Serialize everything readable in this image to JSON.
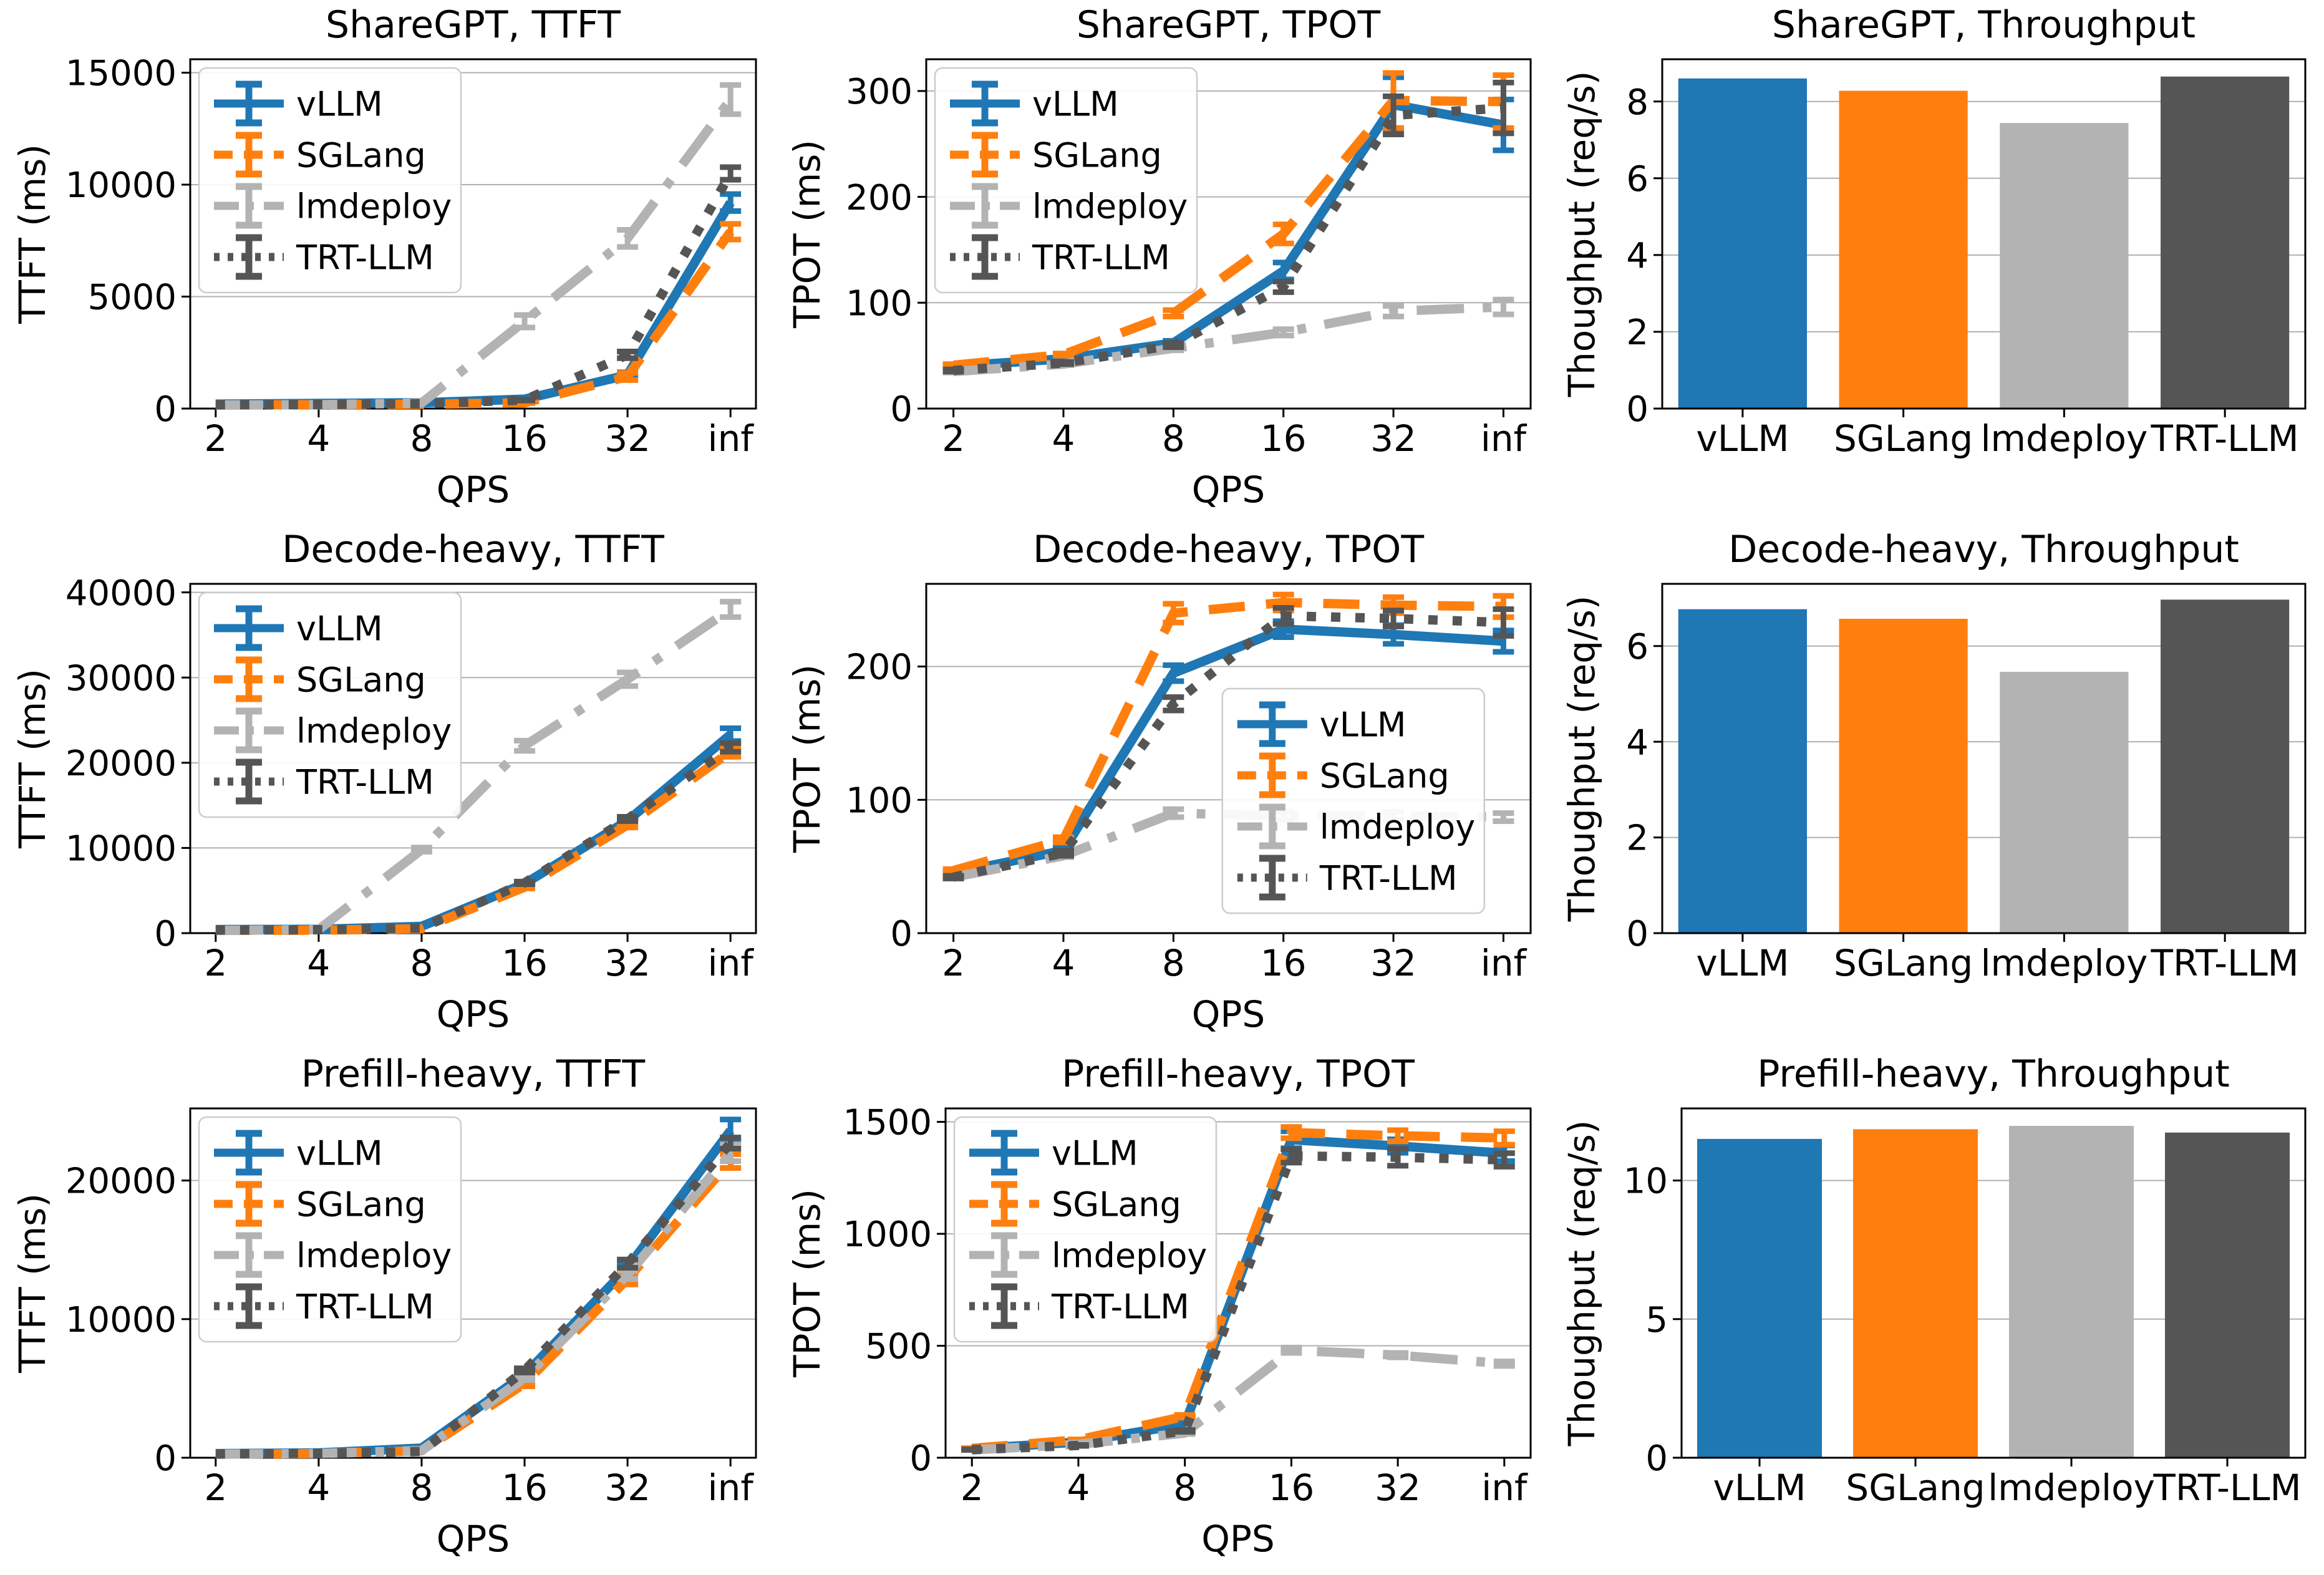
{
  "style": {
    "background": "#ffffff",
    "grid_color": "#b0b0b0",
    "spine_color": "#000000",
    "legend_border_color": "#cccccc",
    "series": {
      "vLLM": {
        "color": "#1f77b4",
        "linestyle": "solid"
      },
      "SGLang": {
        "color": "#ff7f0e",
        "linestyle": "dashed"
      },
      "lmdeploy": {
        "color": "#b3b3b3",
        "linestyle": "dashdot"
      },
      "TRT-LLM": {
        "color": "#555555",
        "linestyle": "dotted"
      }
    }
  },
  "chart_data": [
    {
      "id": "sharegpt_ttft",
      "type": "line",
      "title": "ShareGPT, TTFT",
      "xlabel": "QPS",
      "ylabel": "TTFT (ms)",
      "x": [
        "2",
        "4",
        "8",
        "16",
        "32",
        "inf"
      ],
      "ylim": [
        0,
        15600
      ],
      "yticks": [
        0,
        5000,
        10000,
        15000
      ],
      "grid": true,
      "legend": "upper_left",
      "series": [
        {
          "name": "vLLM",
          "values": [
            200,
            230,
            260,
            420,
            1500,
            9200
          ],
          "yerr": [
            0,
            0,
            0,
            30,
            120,
            380
          ]
        },
        {
          "name": "SGLang",
          "values": [
            160,
            170,
            190,
            260,
            1430,
            7900
          ],
          "yerr": [
            0,
            0,
            0,
            20,
            160,
            350
          ]
        },
        {
          "name": "lmdeploy",
          "values": [
            160,
            170,
            250,
            3900,
            7600,
            13800
          ],
          "yerr": [
            0,
            0,
            0,
            280,
            380,
            650
          ]
        },
        {
          "name": "TRT-LLM",
          "values": [
            170,
            180,
            220,
            380,
            2400,
            10500
          ],
          "yerr": [
            0,
            0,
            0,
            20,
            150,
            280
          ]
        }
      ]
    },
    {
      "id": "sharegpt_tpot",
      "type": "line",
      "title": "ShareGPT, TPOT",
      "xlabel": "QPS",
      "ylabel": "TPOT (ms)",
      "x": [
        "2",
        "4",
        "8",
        "16",
        "32",
        "inf"
      ],
      "ylim": [
        0,
        330
      ],
      "yticks": [
        0,
        100,
        200,
        300
      ],
      "grid": true,
      "legend": "upper_left",
      "series": [
        {
          "name": "vLLM",
          "values": [
            40,
            47,
            62,
            130,
            287,
            268
          ],
          "yerr": [
            1,
            1,
            2,
            8,
            26,
            24
          ]
        },
        {
          "name": "SGLang",
          "values": [
            41,
            51,
            90,
            165,
            291,
            290
          ],
          "yerr": [
            1,
            1,
            3,
            9,
            26,
            25
          ]
        },
        {
          "name": "lmdeploy",
          "values": [
            35,
            42,
            57,
            72,
            92,
            96
          ],
          "yerr": [
            1,
            1,
            2,
            3,
            5,
            7
          ]
        },
        {
          "name": "TRT-LLM",
          "values": [
            36,
            43,
            60,
            115,
            277,
            284
          ],
          "yerr": [
            1,
            1,
            2,
            5,
            18,
            24
          ]
        }
      ]
    },
    {
      "id": "sharegpt_throughput",
      "type": "bar",
      "title": "ShareGPT, Throughput",
      "xlabel": "",
      "ylabel": "Thoughput (req/s)",
      "categories": [
        "vLLM",
        "SGLang",
        "lmdeploy",
        "TRT-LLM"
      ],
      "values": [
        8.6,
        8.28,
        7.44,
        8.65
      ],
      "ylim": [
        0,
        9.1
      ],
      "yticks": [
        0,
        2,
        4,
        6,
        8
      ],
      "grid": true,
      "legend": "none"
    },
    {
      "id": "decode_ttft",
      "type": "line",
      "title": "Decode-heavy, TTFT",
      "xlabel": "QPS",
      "ylabel": "TTFT (ms)",
      "x": [
        "2",
        "4",
        "8",
        "16",
        "32",
        "inf"
      ],
      "ylim": [
        0,
        41000
      ],
      "yticks": [
        0,
        10000,
        20000,
        30000,
        40000
      ],
      "grid": true,
      "legend": "upper_left",
      "series": [
        {
          "name": "vLLM",
          "values": [
            420,
            450,
            800,
            5800,
            13200,
            23300
          ],
          "yerr": [
            0,
            0,
            0,
            150,
            250,
            750
          ]
        },
        {
          "name": "SGLang",
          "values": [
            320,
            350,
            500,
            5400,
            12700,
            21300
          ],
          "yerr": [
            0,
            0,
            0,
            150,
            300,
            600
          ]
        },
        {
          "name": "lmdeploy",
          "values": [
            320,
            420,
            9800,
            22000,
            29800,
            38000
          ],
          "yerr": [
            0,
            0,
            250,
            600,
            800,
            900
          ]
        },
        {
          "name": "TRT-LLM",
          "values": [
            360,
            400,
            600,
            5900,
            13400,
            21800
          ],
          "yerr": [
            0,
            0,
            0,
            150,
            250,
            500
          ]
        }
      ]
    },
    {
      "id": "decode_tpot",
      "type": "line",
      "title": "Decode-heavy, TPOT",
      "xlabel": "QPS",
      "ylabel": "TPOT (ms)",
      "x": [
        "2",
        "4",
        "8",
        "16",
        "32",
        "inf"
      ],
      "ylim": [
        0,
        262
      ],
      "yticks": [
        0,
        100,
        200
      ],
      "grid": true,
      "legend": "center_right",
      "series": [
        {
          "name": "vLLM",
          "values": [
            45,
            62,
            195,
            228,
            224,
            219
          ],
          "yerr": [
            1,
            2,
            6,
            6,
            7,
            8
          ]
        },
        {
          "name": "SGLang",
          "values": [
            47,
            70,
            240,
            248,
            246,
            245
          ],
          "yerr": [
            1,
            2,
            7,
            6,
            6,
            8
          ]
        },
        {
          "name": "lmdeploy",
          "values": [
            42,
            58,
            90,
            88,
            88,
            87
          ],
          "yerr": [
            1,
            1,
            3,
            3,
            3,
            3
          ]
        },
        {
          "name": "TRT-LLM",
          "values": [
            42,
            60,
            172,
            238,
            236,
            233
          ],
          "yerr": [
            1,
            2,
            5,
            6,
            6,
            10
          ]
        }
      ]
    },
    {
      "id": "decode_throughput",
      "type": "bar",
      "title": "Decode-heavy, Throughput",
      "xlabel": "",
      "ylabel": "Thoughput (req/s)",
      "categories": [
        "vLLM",
        "SGLang",
        "lmdeploy",
        "TRT-LLM"
      ],
      "values": [
        6.77,
        6.57,
        5.46,
        6.97
      ],
      "ylim": [
        0,
        7.3
      ],
      "yticks": [
        0,
        2,
        4,
        6
      ],
      "grid": true,
      "legend": "none"
    },
    {
      "id": "prefill_ttft",
      "type": "line",
      "title": "Prefill-heavy, TTFT",
      "xlabel": "QPS",
      "ylabel": "TTFT (ms)",
      "x": [
        "2",
        "4",
        "8",
        "16",
        "32",
        "inf"
      ],
      "ylim": [
        0,
        25200
      ],
      "yticks": [
        0,
        10000,
        20000
      ],
      "grid": true,
      "legend": "upper_left",
      "series": [
        {
          "name": "vLLM",
          "values": [
            300,
            350,
            700,
            6000,
            13700,
            23600
          ],
          "yerr": [
            0,
            0,
            0,
            150,
            300,
            800
          ]
        },
        {
          "name": "SGLang",
          "values": [
            260,
            300,
            500,
            5350,
            12900,
            21400
          ],
          "yerr": [
            0,
            0,
            0,
            200,
            400,
            500
          ]
        },
        {
          "name": "lmdeploy",
          "values": [
            260,
            310,
            520,
            5750,
            13200,
            22000
          ],
          "yerr": [
            0,
            0,
            0,
            150,
            300,
            600
          ]
        },
        {
          "name": "TRT-LLM",
          "values": [
            270,
            320,
            450,
            6300,
            14000,
            22700
          ],
          "yerr": [
            0,
            0,
            0,
            150,
            300,
            400
          ]
        }
      ]
    },
    {
      "id": "prefill_tpot",
      "type": "line",
      "title": "Prefill-heavy, TPOT",
      "xlabel": "QPS",
      "ylabel": "TPOT (ms)",
      "x": [
        "2",
        "4",
        "8",
        "16",
        "32",
        "inf"
      ],
      "ylim": [
        0,
        1560
      ],
      "yticks": [
        0,
        500,
        1000,
        1500
      ],
      "grid": true,
      "legend": "upper_left",
      "series": [
        {
          "name": "vLLM",
          "values": [
            40,
            70,
            150,
            1420,
            1392,
            1360
          ],
          "yerr": [
            1,
            2,
            5,
            38,
            30,
            35
          ]
        },
        {
          "name": "SGLang",
          "values": [
            42,
            80,
            185,
            1452,
            1438,
            1428
          ],
          "yerr": [
            1,
            2,
            6,
            25,
            25,
            30
          ]
        },
        {
          "name": "lmdeploy",
          "values": [
            35,
            60,
            110,
            480,
            458,
            420
          ],
          "yerr": [
            1,
            2,
            4,
            12,
            10,
            10
          ]
        },
        {
          "name": "TRT-LLM",
          "values": [
            36,
            55,
            120,
            1348,
            1342,
            1330
          ],
          "yerr": [
            1,
            2,
            4,
            30,
            38,
            30
          ]
        }
      ]
    },
    {
      "id": "prefill_throughput",
      "type": "bar",
      "title": "Prefill-heavy, Throughput",
      "xlabel": "",
      "ylabel": "Thoughput (req/s)",
      "categories": [
        "vLLM",
        "SGLang",
        "lmdeploy",
        "TRT-LLM"
      ],
      "values": [
        11.5,
        11.85,
        11.97,
        11.73
      ],
      "ylim": [
        0,
        12.6
      ],
      "yticks": [
        0,
        5,
        10
      ],
      "grid": true,
      "legend": "none"
    }
  ]
}
